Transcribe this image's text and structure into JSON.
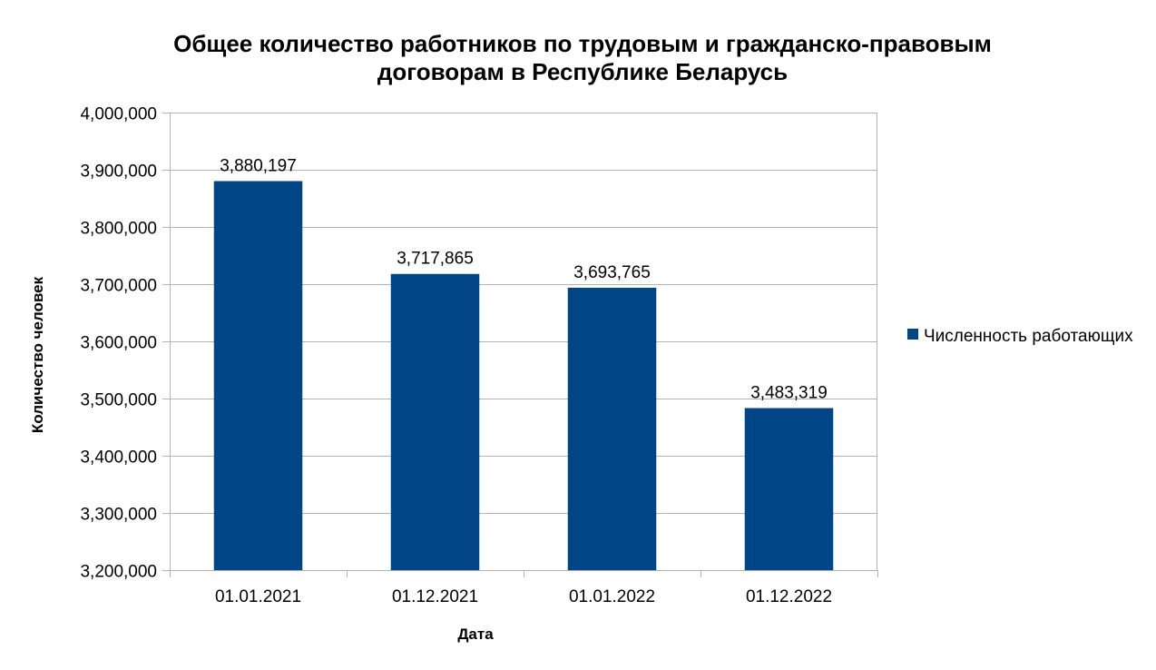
{
  "chart_data": {
    "type": "bar",
    "title_lines": [
      "Общее количество работников по трудовым и гражданско-правовым",
      "договорам в Республике Беларусь"
    ],
    "categories": [
      "01.01.2021",
      "01.12.2021",
      "01.01.2022",
      "01.12.2022"
    ],
    "series": [
      {
        "name": "Численность работающих",
        "values": [
          3880197,
          3717865,
          3693765,
          3483319
        ],
        "color": "#004586"
      }
    ],
    "data_labels": [
      "3,880,197",
      "3,717,865",
      "3,693,765",
      "3,483,319"
    ],
    "xlabel": "Дата",
    "ylabel": "Количество человек",
    "ylim": [
      3200000,
      4000000
    ],
    "ytick_step": 100000,
    "ytick_labels": [
      "3,200,000",
      "3,300,000",
      "3,400,000",
      "3,500,000",
      "3,600,000",
      "3,700,000",
      "3,800,000",
      "3,900,000",
      "4,000,000"
    ],
    "grid": true,
    "legend_position": "right",
    "colors": {
      "bar": "#004586",
      "grid": "#b3b3b3",
      "text": "#000000"
    }
  }
}
